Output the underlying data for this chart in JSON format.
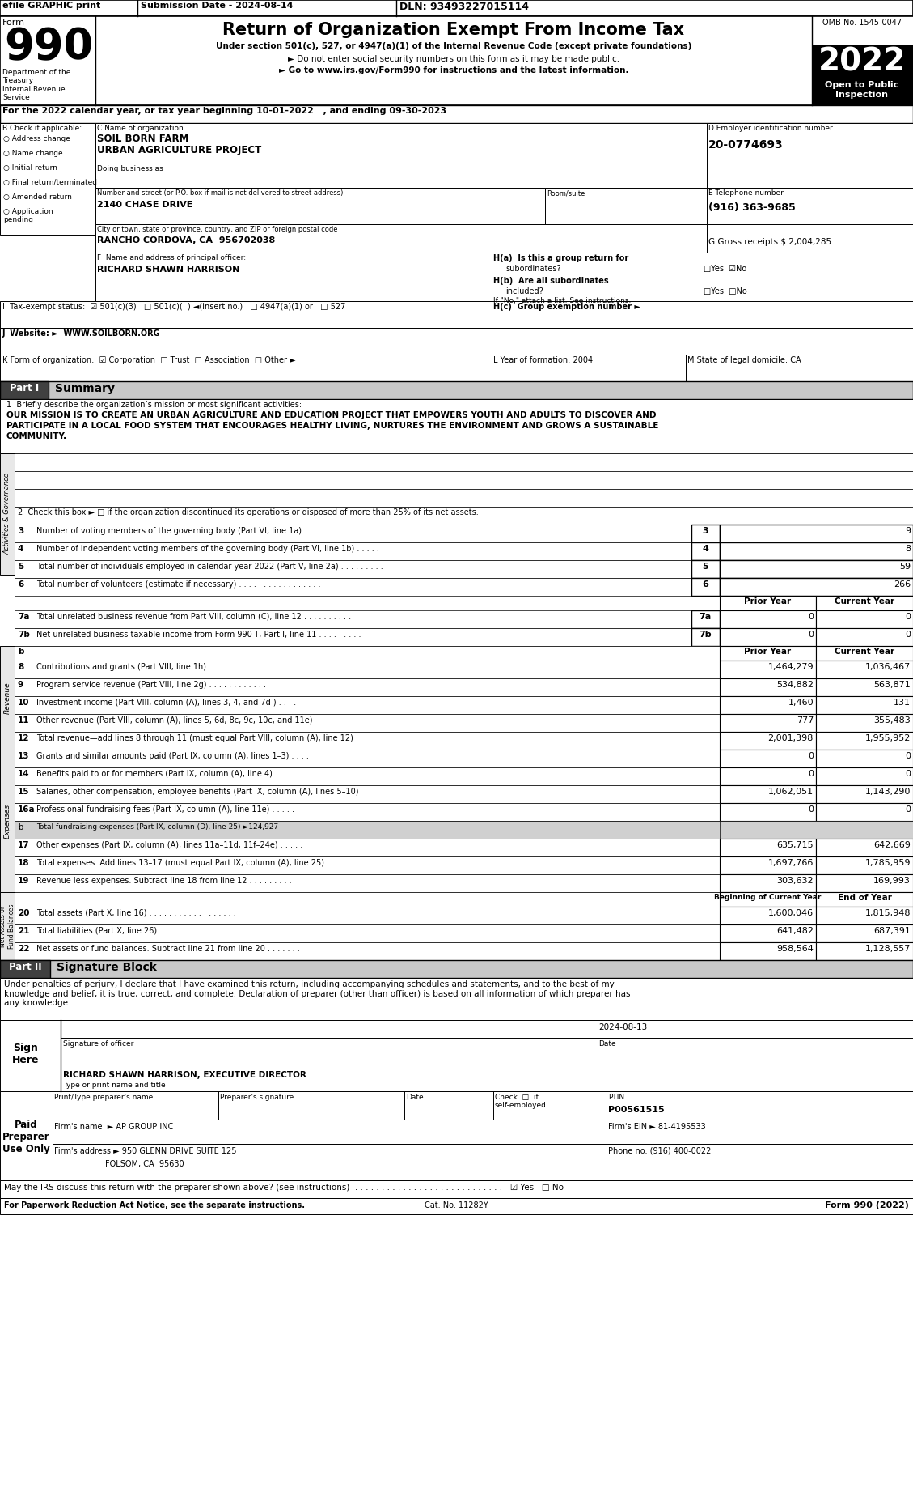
{
  "top_bar_efile": "efile GRAPHIC print",
  "top_bar_submission": "Submission Date - 2024-08-14",
  "top_bar_dln": "DLN: 93493227015114",
  "form_number": "990",
  "dept_text": "Department of the\nTreasury\nInternal Revenue\nService",
  "title": "Return of Organization Exempt From Income Tax",
  "subtitle1": "Under section 501(c), 527, or 4947(a)(1) of the Internal Revenue Code (except private foundations)",
  "subtitle2": "► Do not enter social security numbers on this form as it may be made public.",
  "subtitle3": "► Go to www.irs.gov/Form990 for instructions and the latest information.",
  "omb": "OMB No. 1545-0047",
  "year": "2022",
  "open_text": "Open to Public\nInspection",
  "year_line": "For the 2022 calendar year, or tax year beginning 10-01-2022   , and ending 09-30-2023",
  "check_label": "B Check if applicable:",
  "check_items": [
    "Address change",
    "Name change",
    "Initial return",
    "Final return/terminated",
    "Amended return",
    "Application\npending"
  ],
  "org_name_label": "C Name of organization",
  "org_name1": "SOIL BORN FARM",
  "org_name2": "URBAN AGRICULTURE PROJECT",
  "dba_label": "Doing business as",
  "ein_label": "D Employer identification number",
  "ein": "20-0774693",
  "address_label": "Number and street (or P.O. box if mail is not delivered to street address)",
  "room_label": "Room/suite",
  "address": "2140 CHASE DRIVE",
  "phone_label": "E Telephone number",
  "phone": "(916) 363-9685",
  "city_label": "City or town, state or province, country, and ZIP or foreign postal code",
  "city": "RANCHO CORDOVA, CA  956702038",
  "gross_label": "G Gross receipts $ 2,004,285",
  "officer_label": "F  Name and address of principal officer:",
  "officer_name": "RICHARD SHAWN HARRISON",
  "ha_text": "H(a)  Is this a group return for subordinates?",
  "ha_ans": "□Yes  ☑No",
  "hb_text": "H(b)  Are all subordinates included?",
  "hb_ans": "□Yes  □No",
  "hb_note": "If \"No,\" attach a list. See instructions.",
  "hc_text": "H(c)  Group exemption number ►",
  "tax_exempt": "I  Tax-exempt status:  ☑ 501(c)(3)   □ 501(c)(  ) ◄(insert no.)   □ 4947(a)(1) or   □ 527",
  "website": "J  Website: ►  WWW.SOILBORN.ORG",
  "form_org": "K Form of organization:  ☑ Corporation  □ Trust  □ Association  □ Other ►",
  "year_form": "L Year of formation: 2004",
  "state_dom": "M State of legal domicile: CA",
  "mission_label": "1  Briefly describe the organization’s mission or most significant activities:",
  "mission_line1": "OUR MISSION IS TO CREATE AN URBAN AGRICULTURE AND EDUCATION PROJECT THAT EMPOWERS YOUTH AND ADULTS TO DISCOVER AND",
  "mission_line2": "PARTICIPATE IN A LOCAL FOOD SYSTEM THAT ENCOURAGES HEALTHY LIVING, NURTURES THE ENVIRONMENT AND GROWS A SUSTAINABLE",
  "mission_line3": "COMMUNITY.",
  "line2_text": "2  Check this box ► □ if the organization discontinued its operations or disposed of more than 25% of its net assets.",
  "summary_rows": [
    {
      "num": "3",
      "label": "Number of voting members of the governing body (Part VI, line 1a) . . . . . . . . . .",
      "val": "9"
    },
    {
      "num": "4",
      "label": "Number of independent voting members of the governing body (Part VI, line 1b) . . . . . .",
      "val": "8"
    },
    {
      "num": "5",
      "label": "Total number of individuals employed in calendar year 2022 (Part V, line 2a) . . . . . . . . .",
      "val": "59"
    },
    {
      "num": "6",
      "label": "Total number of volunteers (estimate if necessary) . . . . . . . . . . . . . . . . .",
      "val": "266"
    },
    {
      "num": "7a",
      "label": "Total unrelated business revenue from Part VIII, column (C), line 12 . . . . . . . . . .",
      "prior": "0",
      "val": "0"
    },
    {
      "num": "7b",
      "label": "Net unrelated business taxable income from Form 990-T, Part I, line 11 . . . . . . . . .",
      "prior": "0",
      "val": "0"
    }
  ],
  "revenue_rows": [
    {
      "num": "8",
      "label": "Contributions and grants (Part VIII, line 1h) . . . . . . . . . . . .",
      "prior": "1,464,279",
      "val": "1,036,467"
    },
    {
      "num": "9",
      "label": "Program service revenue (Part VIII, line 2g) . . . . . . . . . . . .",
      "prior": "534,882",
      "val": "563,871"
    },
    {
      "num": "10",
      "label": "Investment income (Part VIII, column (A), lines 3, 4, and 7d ) . . . .",
      "prior": "1,460",
      "val": "131"
    },
    {
      "num": "11",
      "label": "Other revenue (Part VIII, column (A), lines 5, 6d, 8c, 9c, 10c, and 11e)",
      "prior": "777",
      "val": "355,483"
    },
    {
      "num": "12",
      "label": "Total revenue—add lines 8 through 11 (must equal Part VIII, column (A), line 12)",
      "prior": "2,001,398",
      "val": "1,955,952"
    }
  ],
  "expense_rows": [
    {
      "num": "13",
      "label": "Grants and similar amounts paid (Part IX, column (A), lines 1–3) . . . .",
      "prior": "0",
      "val": "0"
    },
    {
      "num": "14",
      "label": "Benefits paid to or for members (Part IX, column (A), line 4) . . . . .",
      "prior": "0",
      "val": "0"
    },
    {
      "num": "15",
      "label": "Salaries, other compensation, employee benefits (Part IX, column (A), lines 5–10)",
      "prior": "1,062,051",
      "val": "1,143,290"
    },
    {
      "num": "16a",
      "label": "Professional fundraising fees (Part IX, column (A), line 11e) . . . . .",
      "prior": "0",
      "val": "0"
    },
    {
      "num": "b",
      "label": "Total fundraising expenses (Part IX, column (D), line 25) ►124,927",
      "prior": "",
      "val": "",
      "shaded": true
    },
    {
      "num": "17",
      "label": "Other expenses (Part IX, column (A), lines 11a–11d, 11f–24e) . . . . .",
      "prior": "635,715",
      "val": "642,669"
    },
    {
      "num": "18",
      "label": "Total expenses. Add lines 13–17 (must equal Part IX, column (A), line 25)",
      "prior": "1,697,766",
      "val": "1,785,959"
    },
    {
      "num": "19",
      "label": "Revenue less expenses. Subtract line 18 from line 12 . . . . . . . . .",
      "prior": "303,632",
      "val": "169,993"
    }
  ],
  "netasset_rows": [
    {
      "num": "20",
      "label": "Total assets (Part X, line 16) . . . . . . . . . . . . . . . . . .",
      "prior": "1,600,046",
      "val": "1,815,948"
    },
    {
      "num": "21",
      "label": "Total liabilities (Part X, line 26) . . . . . . . . . . . . . . . . .",
      "prior": "641,482",
      "val": "687,391"
    },
    {
      "num": "22",
      "label": "Net assets or fund balances. Subtract line 21 from line 20 . . . . . . .",
      "prior": "958,564",
      "val": "1,128,557"
    }
  ],
  "penalty_text": "Under penalties of perjury, I declare that I have examined this return, including accompanying schedules and statements, and to the best of my\nknowledge and belief, it is true, correct, and complete. Declaration of preparer (other than officer) is based on all information of which preparer has\nany knowledge.",
  "sign_date": "2024-08-13",
  "officer_sig_name": "RICHARD SHAWN HARRISON, EXECUTIVE DIRECTOR",
  "officer_sig_label": "Type or print name and title",
  "ptin": "P00561515",
  "firm_name": "AP GROUP INC",
  "firm_ein": "81-4195533",
  "firm_addr": "950 GLENN DRIVE SUITE 125",
  "firm_city": "FOLSOM, CA  95630",
  "firm_phone": "(916) 400-0022",
  "irs_discuss": "May the IRS discuss this return with the preparer shown above? (see instructions)  . . . . . . . . . . . . . . . . . . . . . . . . . . . .   ☑ Yes   □ No",
  "footer_left": "For Paperwork Reduction Act Notice, see the separate instructions.",
  "footer_cat": "Cat. No. 11282Y",
  "footer_right": "Form 990 (2022)"
}
